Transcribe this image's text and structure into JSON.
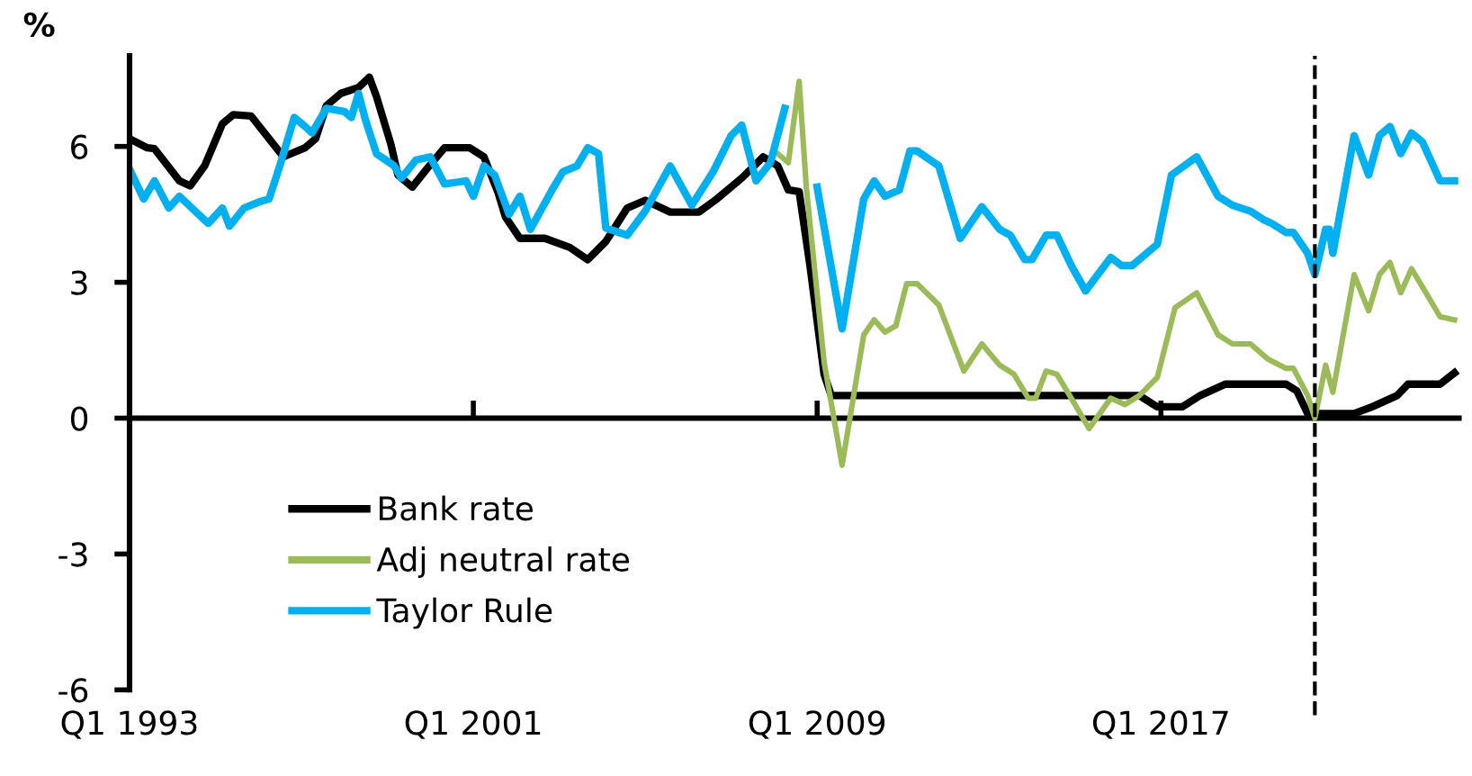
{
  "chart_data": {
    "type": "line",
    "ylabel": "%",
    "xlim": [
      "1993-01",
      "2024-01"
    ],
    "ylim": [
      -6,
      8
    ],
    "xticks": [
      {
        "value": "1993-01",
        "label": "Q1 1993"
      },
      {
        "value": "2001-01",
        "label": "Q1 2001"
      },
      {
        "value": "2009-01",
        "label": "Q1 2009"
      },
      {
        "value": "2017-01",
        "label": "Q1 2017"
      }
    ],
    "yticks": [
      -6,
      -3,
      0,
      3,
      6
    ],
    "grid": false,
    "legend": "bottom left",
    "marker": "none",
    "line_style": "solid",
    "ref_lines": [
      {
        "axis": "x",
        "value": "2020-08",
        "color": "#000000",
        "line_style": "dashed"
      },
      {
        "axis": "y",
        "value": 0,
        "color": "#000000",
        "line_style": "solid"
      }
    ],
    "series": [
      {
        "name": "Bank rate",
        "color": "#000000",
        "x": [
          "1993-01",
          "1993-06",
          "1993-08",
          "1994-03",
          "1994-06",
          "1994-10",
          "1995-03",
          "1995-06",
          "1995-11",
          "1996-04",
          "1996-08",
          "1997-02",
          "1997-05",
          "1997-08",
          "1997-12",
          "1998-05",
          "1998-08",
          "1998-10",
          "1999-02",
          "1999-04",
          "1999-08",
          "1999-12",
          "2000-05",
          "2000-12",
          "2001-04",
          "2001-08",
          "2001-10",
          "2002-02",
          "2002-09",
          "2003-04",
          "2003-09",
          "2004-02",
          "2004-08",
          "2005-01",
          "2005-08",
          "2006-04",
          "2006-09",
          "2007-04",
          "2007-10",
          "2008-02",
          "2008-05",
          "2008-08",
          "2008-11",
          "2009-03",
          "2009-05",
          "2016-07",
          "2016-12",
          "2017-07",
          "2017-12",
          "2018-07",
          "2019-12",
          "2020-03",
          "2020-06",
          "2021-07",
          "2021-12",
          "2022-07",
          "2022-10",
          "2023-07",
          "2023-11"
        ],
        "values": [
          6.17,
          5.97,
          5.95,
          5.24,
          5.13,
          5.57,
          6.5,
          6.7,
          6.67,
          6.17,
          5.77,
          5.97,
          6.17,
          6.9,
          7.17,
          7.3,
          7.53,
          7.1,
          6.04,
          5.37,
          5.1,
          5.5,
          5.97,
          5.97,
          5.77,
          4.97,
          4.44,
          3.97,
          3.97,
          3.77,
          3.5,
          3.9,
          4.64,
          4.81,
          4.55,
          4.55,
          4.84,
          5.3,
          5.77,
          5.57,
          5.04,
          5.0,
          3.37,
          0.97,
          0.5,
          0.5,
          0.25,
          0.25,
          0.5,
          0.75,
          0.75,
          0.6,
          0.1,
          0.1,
          0.25,
          0.5,
          0.75,
          0.75,
          1.0
        ]
      },
      {
        "name": "Adj neutral rate",
        "color": "#9bbb59",
        "x": [
          "2008-02",
          "2008-05",
          "2008-08",
          "2008-10",
          "2009-03",
          "2009-08",
          "2010-02",
          "2010-05",
          "2010-08",
          "2010-11",
          "2011-02",
          "2011-05",
          "2011-11",
          "2012-06",
          "2012-11",
          "2013-04",
          "2013-08",
          "2013-12",
          "2014-02",
          "2014-05",
          "2014-08",
          "2014-12",
          "2015-05",
          "2015-11",
          "2016-03",
          "2016-07",
          "2016-12",
          "2017-05",
          "2017-11",
          "2018-05",
          "2018-09",
          "2019-02",
          "2019-07",
          "2019-12",
          "2020-02",
          "2020-06",
          "2020-08",
          "2020-11",
          "2021-01",
          "2021-07",
          "2021-11",
          "2022-02",
          "2022-05",
          "2022-08",
          "2022-11",
          "2023-02",
          "2023-07",
          "2023-11"
        ],
        "values": [
          5.84,
          5.64,
          7.44,
          5.1,
          1.24,
          -1.04,
          1.84,
          2.17,
          1.9,
          2.04,
          2.97,
          2.97,
          2.5,
          1.04,
          1.64,
          1.17,
          0.97,
          0.44,
          0.44,
          1.04,
          0.97,
          0.44,
          -0.23,
          0.44,
          0.3,
          0.5,
          0.9,
          2.44,
          2.77,
          1.84,
          1.64,
          1.64,
          1.3,
          1.1,
          1.1,
          0.5,
          0.0,
          1.17,
          0.57,
          3.17,
          2.37,
          3.17,
          3.44,
          2.77,
          3.3,
          2.9,
          2.24,
          2.17
        ]
      },
      {
        "name": "Taylor Rule",
        "color": "#00b0f0",
        "x": [
          "1993-01",
          "1993-05",
          "1993-08",
          "1993-12",
          "1994-03",
          "1994-11",
          "1995-03",
          "1995-05",
          "1995-09",
          "1996-01",
          "1996-04",
          "1996-07",
          "1996-11",
          "1997-02",
          "1997-04",
          "1997-08",
          "1998-01",
          "1998-03",
          "1998-05",
          "1998-07",
          "1998-10",
          "1999-03",
          "1999-05",
          "1999-09",
          "2000-01",
          "2000-05",
          "2000-11",
          "2001-01",
          "2001-04",
          "2001-07",
          "2001-11",
          "2002-02",
          "2002-05",
          "2002-11",
          "2003-02",
          "2003-06",
          "2003-09",
          "2003-12",
          "2004-02",
          "2004-08",
          "2005-01",
          "2005-08",
          "2006-02",
          "2006-08",
          "2007-01",
          "2007-04",
          "2007-08",
          "2007-12",
          "2008-04",
          "2008-06",
          "2008-09",
          "2009-01",
          "2009-08",
          "2010-02",
          "2010-05",
          "2010-08",
          "2010-12",
          "2011-03",
          "2011-05",
          "2011-11",
          "2012-05",
          "2012-11",
          "2013-04",
          "2013-07",
          "2013-11",
          "2014-01",
          "2014-05",
          "2014-08",
          "2014-12",
          "2015-04",
          "2015-11",
          "2016-02",
          "2016-05",
          "2016-12",
          "2017-04",
          "2017-11",
          "2018-05",
          "2018-09",
          "2019-02",
          "2019-06",
          "2019-08",
          "2019-12",
          "2020-02",
          "2020-06",
          "2020-08",
          "2020-11",
          "2020-12",
          "2021-01",
          "2021-07",
          "2021-11",
          "2022-02",
          "2022-05",
          "2022-08",
          "2022-11",
          "2023-02",
          "2023-07",
          "2023-11"
        ],
        "values": [
          5.5,
          4.84,
          5.24,
          4.64,
          4.9,
          4.3,
          4.64,
          4.24,
          4.64,
          4.77,
          4.84,
          5.57,
          6.64,
          6.44,
          6.3,
          6.84,
          6.77,
          6.64,
          7.17,
          6.57,
          5.84,
          5.57,
          5.3,
          5.7,
          5.77,
          5.17,
          5.24,
          4.9,
          5.57,
          5.37,
          4.5,
          4.9,
          4.17,
          5.04,
          5.44,
          5.57,
          5.97,
          5.84,
          4.2,
          4.04,
          4.57,
          5.57,
          4.7,
          5.44,
          6.24,
          6.47,
          5.24,
          5.64,
          6.84,
          null,
          null,
          5.1,
          1.97,
          4.84,
          5.24,
          4.9,
          5.04,
          5.9,
          5.9,
          5.57,
          3.97,
          4.67,
          4.17,
          4.04,
          3.5,
          3.5,
          4.04,
          4.04,
          3.37,
          2.81,
          3.55,
          3.37,
          3.37,
          3.84,
          5.37,
          5.77,
          4.9,
          4.7,
          4.57,
          4.37,
          4.3,
          4.1,
          4.1,
          3.64,
          3.17,
          4.17,
          4.17,
          3.64,
          6.24,
          5.37,
          6.24,
          6.44,
          5.84,
          6.3,
          6.1,
          5.24,
          5.24
        ]
      }
    ]
  }
}
